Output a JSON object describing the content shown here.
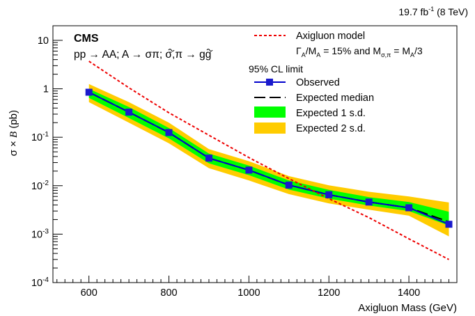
{
  "header": {
    "lumi_prefix": "19.7 fb",
    "lumi_exp": "-1",
    "lumi_suffix": " (8 TeV)"
  },
  "labels": {
    "experiment": "CMS",
    "process_a": "pp → AA; A → σ",
    "process_pi1": "π",
    "process_b": "; σ,",
    "process_pi2": "π",
    "process_c": " → gg"
  },
  "legend": {
    "model_label": "Axigluon model",
    "model_params_a": "Γ",
    "model_params_a_sub": "A",
    "model_params_b": "/M",
    "model_params_b_sub": "A",
    "model_params_c": " = 15% and M",
    "model_params_c_sub": "σ,π",
    "model_params_d": " = M",
    "model_params_d_sub": "A",
    "model_params_e": "/3",
    "limit_header": "95% CL limit",
    "observed": "Observed",
    "expected_median": "Expected median",
    "expected_1sd": "Expected 1 s.d.",
    "expected_2sd": "Expected 2 s.d."
  },
  "colors": {
    "observed": "#0000cc",
    "marker": "#1a1acc",
    "expected": "#000000",
    "band_1sd": "#00ff00",
    "band_2sd": "#ffcc00",
    "model": "#ee0000"
  },
  "chart_data": {
    "type": "line",
    "xlabel": "Axigluon Mass (GeV)",
    "ylabel_a": "σ × ",
    "ylabel_b": "B",
    "ylabel_c": " (pb)",
    "xlim": [
      510,
      1520
    ],
    "ylim": [
      0.0001,
      20
    ],
    "yscale": "log",
    "x_ticks": [
      600,
      800,
      1000,
      1200,
      1400
    ],
    "y_ticks": [
      {
        "base": "10",
        "exp": "-4",
        "value": 0.0001
      },
      {
        "base": "10",
        "exp": "-3",
        "value": 0.001
      },
      {
        "base": "10",
        "exp": "-2",
        "value": 0.01
      },
      {
        "base": "10",
        "exp": "-1",
        "value": 0.1
      },
      {
        "base": "1",
        "exp": "",
        "value": 1
      },
      {
        "base": "10",
        "exp": "",
        "value": 10
      }
    ],
    "x": [
      600,
      700,
      800,
      900,
      1000,
      1100,
      1200,
      1300,
      1400,
      1500
    ],
    "series": [
      {
        "name": "Observed",
        "values": [
          0.85,
          0.33,
          0.125,
          0.037,
          0.021,
          0.0103,
          0.0065,
          0.0046,
          0.0035,
          0.0016
        ]
      },
      {
        "name": "Expected median",
        "values": [
          0.85,
          0.33,
          0.125,
          0.037,
          0.021,
          0.0103,
          0.0065,
          0.0046,
          0.0035,
          0.0018
        ]
      }
    ],
    "band_1sd": {
      "low": [
        0.65,
        0.25,
        0.095,
        0.029,
        0.0165,
        0.0083,
        0.0054,
        0.0039,
        0.003,
        0.0015
      ],
      "high": [
        1.0,
        0.42,
        0.155,
        0.046,
        0.026,
        0.0128,
        0.0082,
        0.0058,
        0.0046,
        0.0029
      ]
    },
    "band_2sd": {
      "low": [
        0.53,
        0.2,
        0.075,
        0.023,
        0.0128,
        0.0067,
        0.0043,
        0.0032,
        0.0024,
        0.0009
      ],
      "high": [
        1.25,
        0.53,
        0.2,
        0.057,
        0.032,
        0.0158,
        0.0102,
        0.0075,
        0.006,
        0.0045
      ]
    },
    "model": {
      "name": "Axigluon model",
      "x": [
        600,
        700,
        800,
        900,
        1000,
        1100,
        1200,
        1300,
        1400,
        1500
      ],
      "values": [
        3.7,
        1.05,
        0.32,
        0.11,
        0.038,
        0.014,
        0.0054,
        0.0022,
        0.0008,
        0.0003
      ]
    }
  }
}
